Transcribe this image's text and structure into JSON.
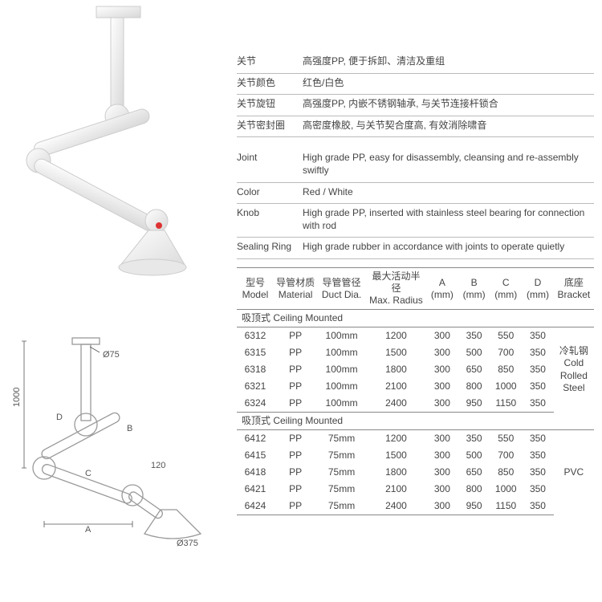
{
  "specs_cn": [
    {
      "label": "关节",
      "value": "高强度PP, 便于拆卸、清洁及重组"
    },
    {
      "label": "关节颜色",
      "value": "红色/白色"
    },
    {
      "label": "关节旋钮",
      "value": "高强度PP, 内嵌不锈钢轴承, 与关节连接杆锁合"
    },
    {
      "label": "关节密封圈",
      "value": "高密度橡胶, 与关节契合度高, 有效消除啸音"
    }
  ],
  "specs_en": [
    {
      "label": "Joint",
      "value": "High grade PP, easy for disassembly, cleansing and re-assembly swiftly"
    },
    {
      "label": "Color",
      "value": "Red / White"
    },
    {
      "label": "Knob",
      "value": "High grade PP, inserted with stainless steel bearing for connection with rod"
    },
    {
      "label": "Sealing Ring",
      "value": "High grade rubber in accordance with joints to operate quietly"
    }
  ],
  "columns": {
    "model_cn": "型号",
    "model_en": "Model",
    "mat_cn": "导管材质",
    "mat_en": "Material",
    "duct_cn": "导管管径",
    "duct_en": "Duct Dia.",
    "rad_cn": "最大活动半径",
    "rad_en": "Max. Radius",
    "a": "A (mm)",
    "b": "B (mm)",
    "c": "C (mm)",
    "d": "D (mm)",
    "bracket_cn": "底座",
    "bracket_en": "Bracket"
  },
  "sections": [
    {
      "title": "吸顶式 Ceiling Mounted",
      "bracket": "冷轧钢 Cold Rolled Steel",
      "rows": [
        {
          "model": "6312",
          "mat": "PP",
          "duct": "100mm",
          "rad": "1200",
          "a": "300",
          "b": "350",
          "c": "550",
          "d": "350"
        },
        {
          "model": "6315",
          "mat": "PP",
          "duct": "100mm",
          "rad": "1500",
          "a": "300",
          "b": "500",
          "c": "700",
          "d": "350"
        },
        {
          "model": "6318",
          "mat": "PP",
          "duct": "100mm",
          "rad": "1800",
          "a": "300",
          "b": "650",
          "c": "850",
          "d": "350"
        },
        {
          "model": "6321",
          "mat": "PP",
          "duct": "100mm",
          "rad": "2100",
          "a": "300",
          "b": "800",
          "c": "1000",
          "d": "350"
        },
        {
          "model": "6324",
          "mat": "PP",
          "duct": "100mm",
          "rad": "2400",
          "a": "300",
          "b": "950",
          "c": "1150",
          "d": "350"
        }
      ]
    },
    {
      "title": "吸顶式 Ceiling Mounted",
      "bracket": "PVC",
      "rows": [
        {
          "model": "6412",
          "mat": "PP",
          "duct": "75mm",
          "rad": "1200",
          "a": "300",
          "b": "350",
          "c": "550",
          "d": "350"
        },
        {
          "model": "6415",
          "mat": "PP",
          "duct": "75mm",
          "rad": "1500",
          "a": "300",
          "b": "500",
          "c": "700",
          "d": "350"
        },
        {
          "model": "6418",
          "mat": "PP",
          "duct": "75mm",
          "rad": "1800",
          "a": "300",
          "b": "650",
          "c": "850",
          "d": "350"
        },
        {
          "model": "6421",
          "mat": "PP",
          "duct": "75mm",
          "rad": "2100",
          "a": "300",
          "b": "800",
          "c": "1000",
          "d": "350"
        },
        {
          "model": "6424",
          "mat": "PP",
          "duct": "75mm",
          "rad": "2400",
          "a": "300",
          "b": "950",
          "c": "1150",
          "d": "350"
        }
      ]
    }
  ],
  "diagram_labels": {
    "h1000": "1000",
    "d75": "Ø75",
    "d120": "120",
    "d375": "Ø375",
    "A": "A",
    "B": "B",
    "C": "C",
    "D": "D"
  }
}
